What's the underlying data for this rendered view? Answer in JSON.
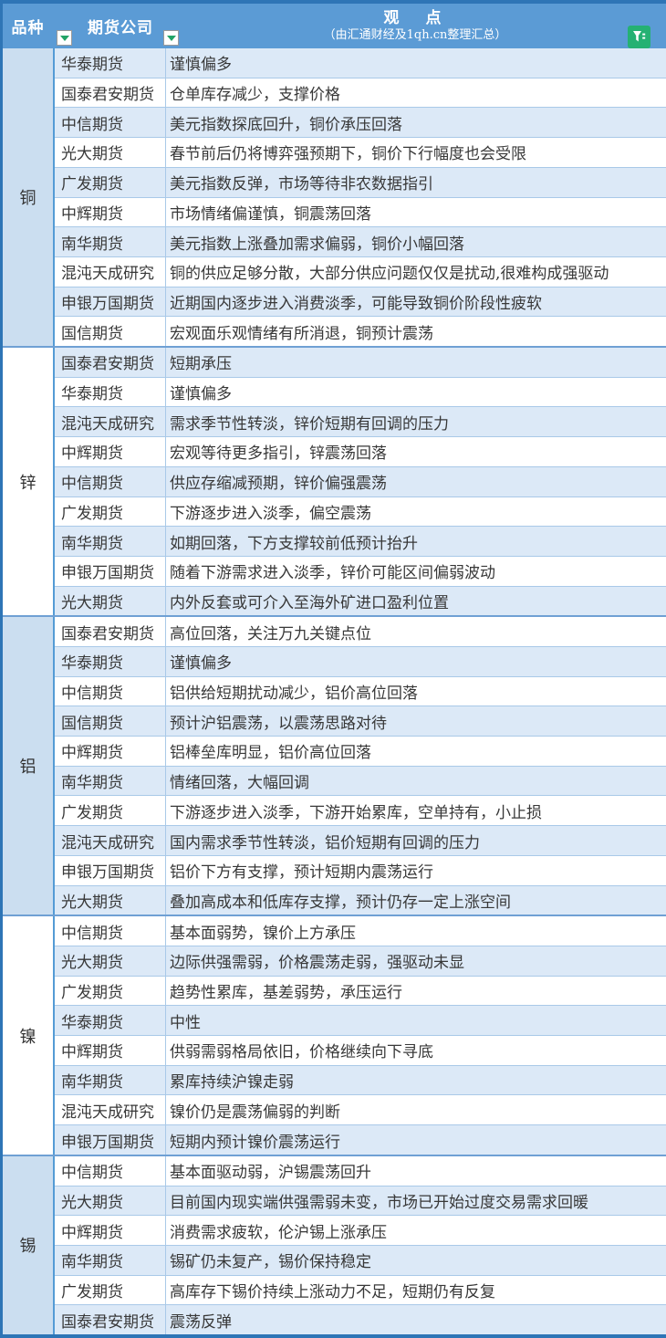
{
  "header": {
    "variety_label": "品种",
    "company_label": "期货公司",
    "view_title": "观　点",
    "view_subtitle": "（由汇通财经及1qh.cn整理汇总）"
  },
  "icons": {
    "variety_filter": "filter-dropdown-icon",
    "company_filter": "filter-dropdown-icon",
    "corner_badge": "funnel-icon"
  },
  "colors": {
    "outer_border": "#2E75B6",
    "header_bg": "#5B9BD5",
    "header_text": "#FFFFFF",
    "stripe_blue": "#DCE9F7",
    "stripe_white": "#FFFFFF",
    "variety_blue": "#CBDEF0",
    "row_line": "#A9C9E8",
    "section_line": "#6FA0D4",
    "filter_green": "#21A366",
    "badge_green": "#25B173",
    "text": "#383838"
  },
  "sections": [
    {
      "variety": "铜",
      "variety_shaded": true,
      "rows": [
        {
          "company": "华泰期货",
          "view": "谨慎偏多"
        },
        {
          "company": "国泰君安期货",
          "view": "仓单库存减少，支撑价格"
        },
        {
          "company": "中信期货",
          "view": "美元指数探底回升，铜价承压回落"
        },
        {
          "company": "光大期货",
          "view": "春节前后仍将博弈强预期下，铜价下行幅度也会受限"
        },
        {
          "company": "广发期货",
          "view": "美元指数反弹，市场等待非农数据指引"
        },
        {
          "company": "中辉期货",
          "view": "市场情绪偏谨慎，铜震荡回落"
        },
        {
          "company": "南华期货",
          "view": "美元指数上涨叠加需求偏弱，铜价小幅回落"
        },
        {
          "company": "混沌天成研究",
          "view": "铜的供应足够分散，大部分供应问题仅仅是扰动,很难构成强驱动"
        },
        {
          "company": "申银万国期货",
          "view": "近期国内逐步进入消费淡季，可能导致铜价阶段性疲软"
        },
        {
          "company": "国信期货",
          "view": "宏观面乐观情绪有所消退，铜预计震荡"
        }
      ]
    },
    {
      "variety": "锌",
      "variety_shaded": false,
      "rows": [
        {
          "company": "国泰君安期货",
          "view": "短期承压"
        },
        {
          "company": "华泰期货",
          "view": "谨慎偏多"
        },
        {
          "company": "混沌天成研究",
          "view": "需求季节性转淡，锌价短期有回调的压力"
        },
        {
          "company": "中辉期货",
          "view": "宏观等待更多指引，锌震荡回落"
        },
        {
          "company": "中信期货",
          "view": "供应存缩减预期，锌价偏强震荡"
        },
        {
          "company": "广发期货",
          "view": "下游逐步进入淡季，偏空震荡"
        },
        {
          "company": "南华期货",
          "view": "如期回落，下方支撑较前低预计抬升"
        },
        {
          "company": "申银万国期货",
          "view": "随着下游需求进入淡季，锌价可能区间偏弱波动"
        },
        {
          "company": "光大期货",
          "view": "内外反套或可介入至海外矿进口盈利位置"
        }
      ]
    },
    {
      "variety": "铝",
      "variety_shaded": true,
      "rows": [
        {
          "company": "国泰君安期货",
          "view": "高位回落，关注万九关键点位"
        },
        {
          "company": "华泰期货",
          "view": "谨慎偏多"
        },
        {
          "company": "中信期货",
          "view": "铝供给短期扰动减少，铝价高位回落"
        },
        {
          "company": "国信期货",
          "view": "预计沪铝震荡，以震荡思路对待"
        },
        {
          "company": "中辉期货",
          "view": "铝棒垒库明显，铝价高位回落"
        },
        {
          "company": "南华期货",
          "view": "情绪回落，大幅回调"
        },
        {
          "company": "广发期货",
          "view": "下游逐步进入淡季，下游开始累库，空单持有，小止损"
        },
        {
          "company": "混沌天成研究",
          "view": "国内需求季节性转淡，铝价短期有回调的压力"
        },
        {
          "company": "申银万国期货",
          "view": "铝价下方有支撑，预计短期内震荡运行"
        },
        {
          "company": "光大期货",
          "view": "叠加高成本和低库存支撑，预计仍存一定上涨空间"
        }
      ]
    },
    {
      "variety": "镍",
      "variety_shaded": false,
      "rows": [
        {
          "company": "中信期货",
          "view": "基本面弱势，镍价上方承压"
        },
        {
          "company": "光大期货",
          "view": "边际供强需弱，价格震荡走弱，强驱动未显"
        },
        {
          "company": "广发期货",
          "view": "趋势性累库，基差弱势，承压运行"
        },
        {
          "company": "华泰期货",
          "view": "中性"
        },
        {
          "company": "中辉期货",
          "view": "供弱需弱格局依旧，价格继续向下寻底"
        },
        {
          "company": "南华期货",
          "view": "累库持续沪镍走弱"
        },
        {
          "company": "混沌天成研究",
          "view": "镍价仍是震荡偏弱的判断"
        },
        {
          "company": "申银万国期货",
          "view": "短期内预计镍价震荡运行"
        }
      ]
    },
    {
      "variety": "锡",
      "variety_shaded": true,
      "rows": [
        {
          "company": "中信期货",
          "view": "基本面驱动弱，沪锡震荡回升"
        },
        {
          "company": "光大期货",
          "view": "目前国内现实端供强需弱未变，市场已开始过度交易需求回暖"
        },
        {
          "company": "中辉期货",
          "view": "消费需求疲软，伦沪锡上涨承压"
        },
        {
          "company": "南华期货",
          "view": "锡矿仍未复产，锡价保持稳定"
        },
        {
          "company": "广发期货",
          "view": "高库存下锡价持续上涨动力不足，短期仍有反复"
        },
        {
          "company": "国泰君安期货",
          "view": "震荡反弹"
        }
      ]
    }
  ]
}
